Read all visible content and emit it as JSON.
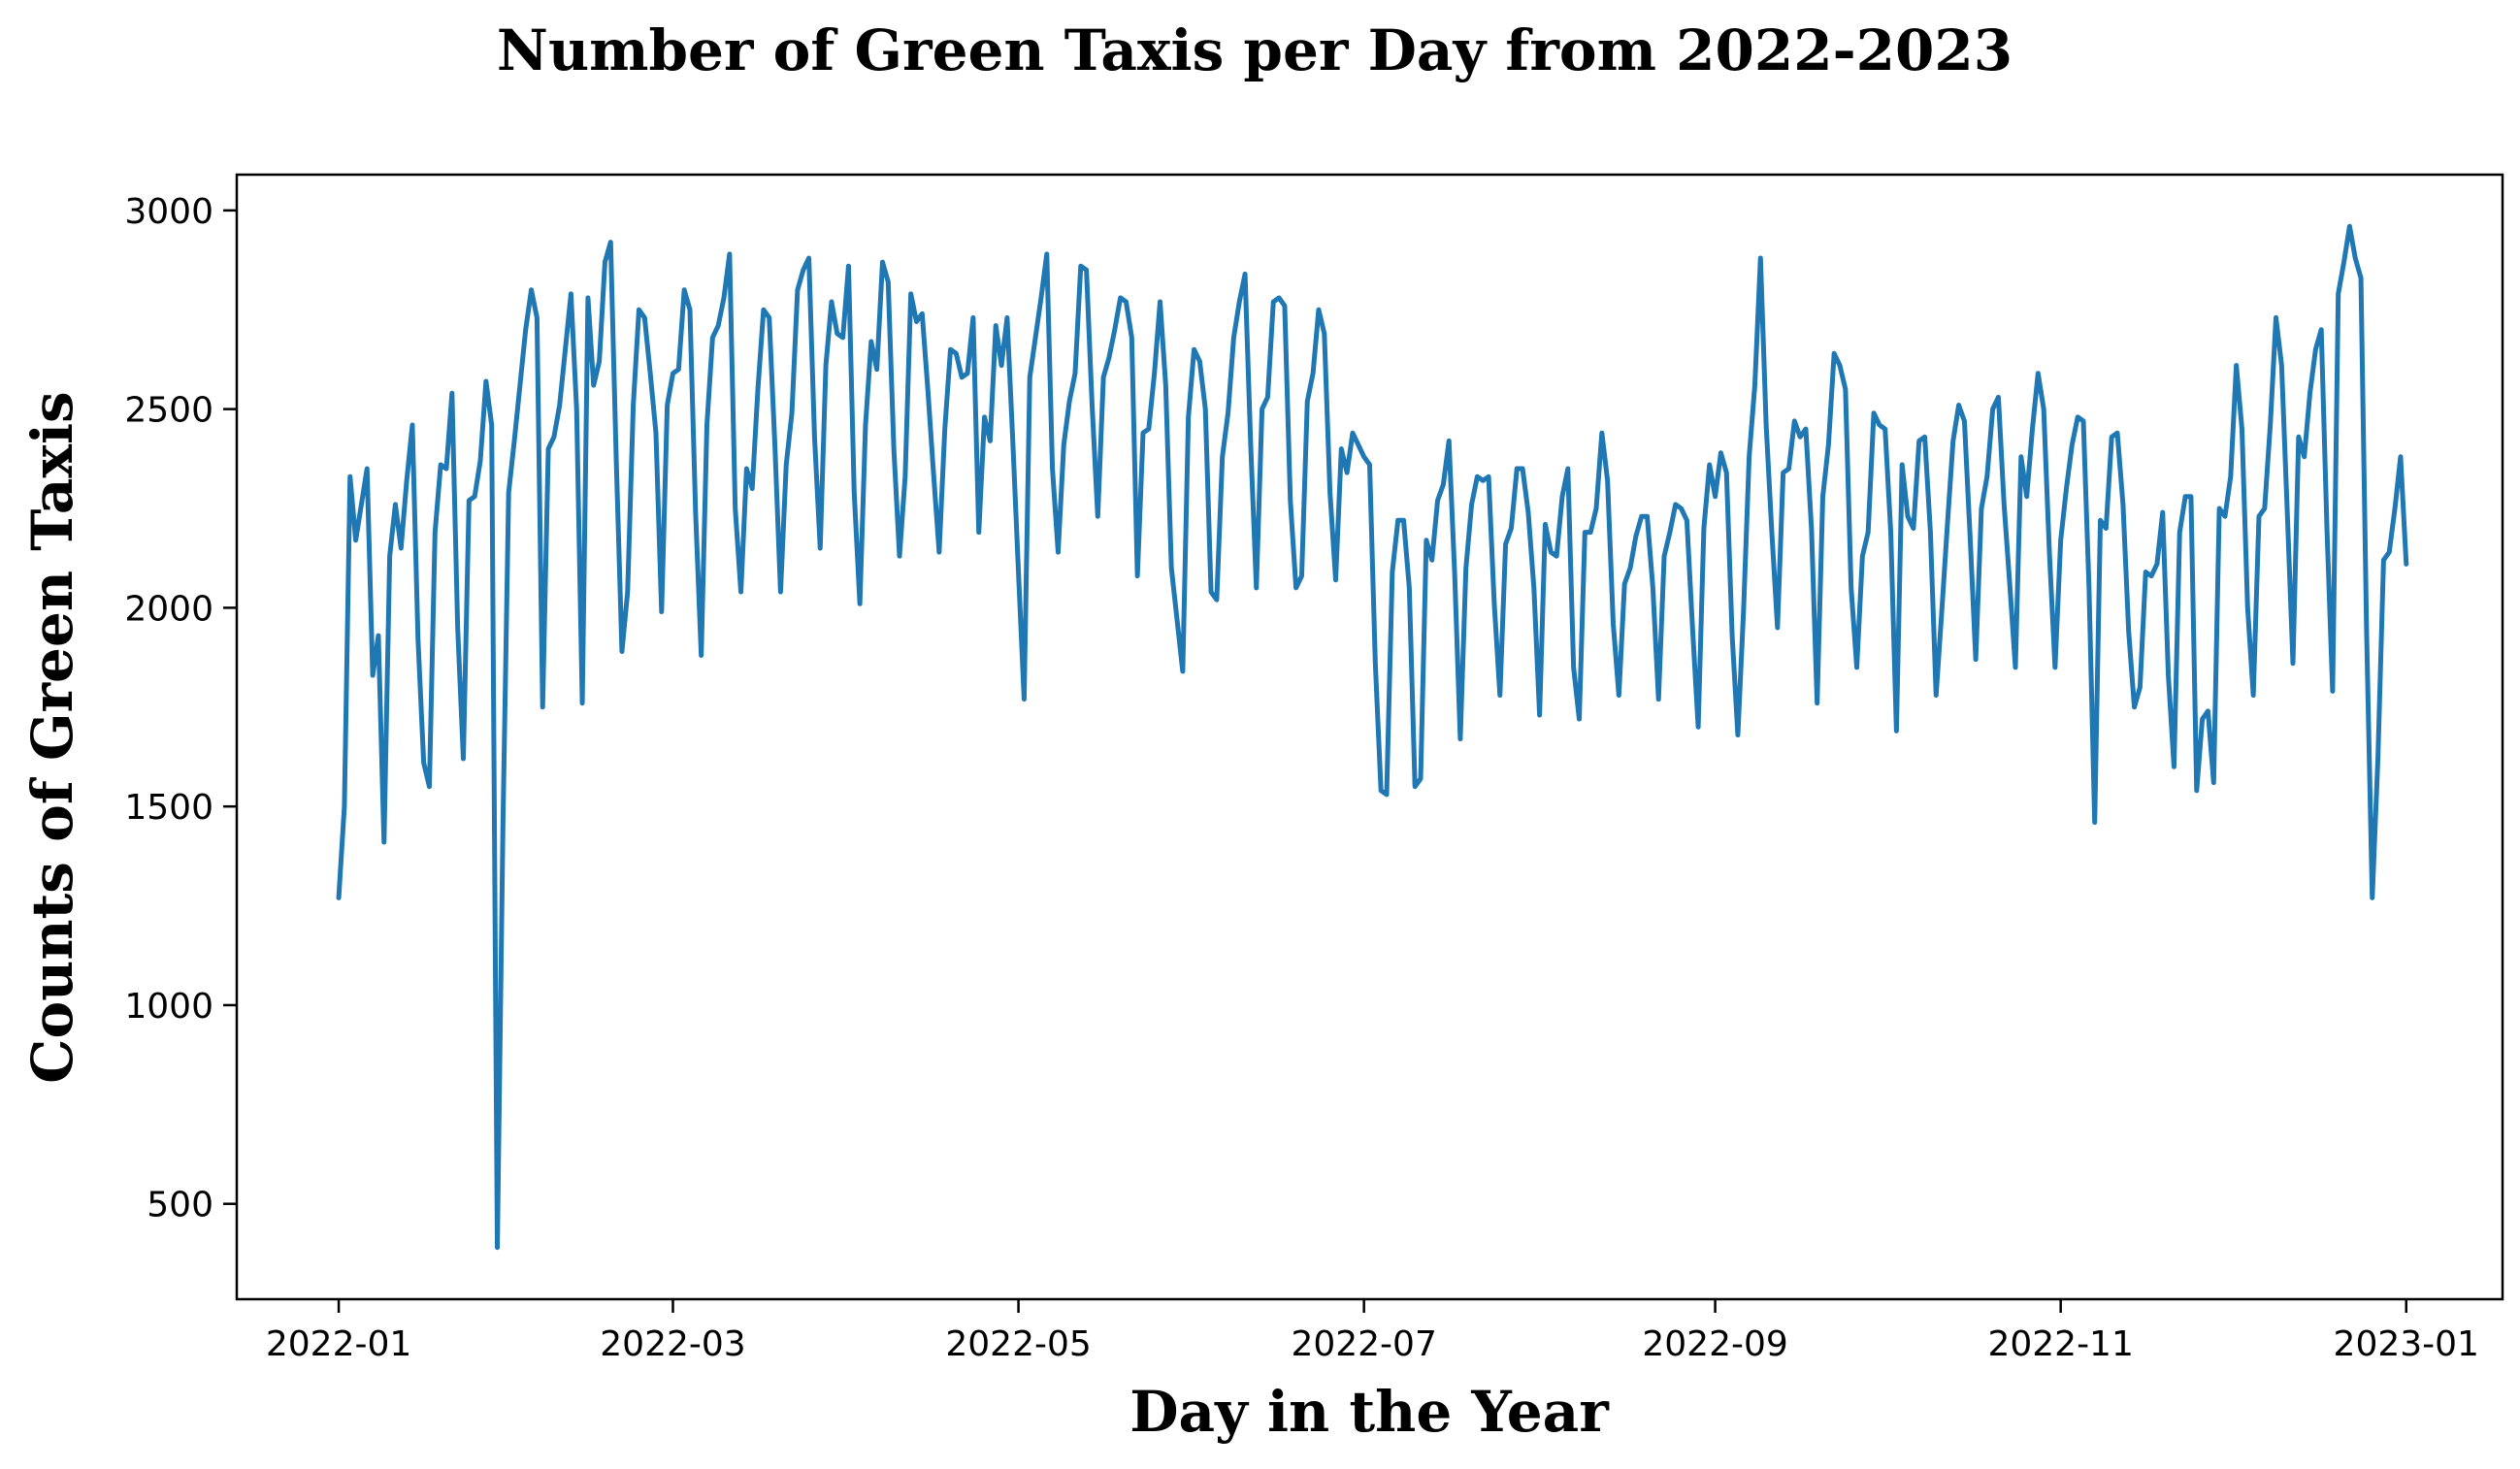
{
  "chart_data": {
    "type": "line",
    "title": "Number of Green Taxis per Day from 2022-2023",
    "xlabel": "Day in the Year",
    "ylabel": "Counts of Green Taxis",
    "x_start": "2022-01-01",
    "x_end": "2022-12-31",
    "xlim": [
      "2021-12-14",
      "2023-01-18"
    ],
    "ylim": [
      260,
      3090
    ],
    "grid": false,
    "line_color": "#1f77b4",
    "x_ticks": [
      {
        "date": "2022-01-01",
        "label": "2022-01"
      },
      {
        "date": "2022-03-01",
        "label": "2022-03"
      },
      {
        "date": "2022-05-01",
        "label": "2022-05"
      },
      {
        "date": "2022-07-01",
        "label": "2022-07"
      },
      {
        "date": "2022-09-01",
        "label": "2022-09"
      },
      {
        "date": "2022-11-01",
        "label": "2022-11"
      },
      {
        "date": "2023-01-01",
        "label": "2023-01"
      }
    ],
    "y_ticks": [
      {
        "value": 500,
        "label": "500"
      },
      {
        "value": 1000,
        "label": "1000"
      },
      {
        "value": 1500,
        "label": "1500"
      },
      {
        "value": 2000,
        "label": "2000"
      },
      {
        "value": 2500,
        "label": "2500"
      },
      {
        "value": 3000,
        "label": "3000"
      }
    ],
    "series": [
      {
        "values": [
          1270,
          1500,
          2330,
          2170,
          2260,
          2350,
          1830,
          1930,
          1410,
          2130,
          2260,
          2150,
          2320,
          2460,
          1920,
          1610,
          1550,
          2190,
          2360,
          2350,
          2540,
          1950,
          1620,
          2270,
          2280,
          2370,
          2570,
          2460,
          390,
          1460,
          2290,
          2420,
          2560,
          2700,
          2800,
          2730,
          1750,
          2400,
          2430,
          2510,
          2650,
          2790,
          2500,
          1760,
          2780,
          2560,
          2620,
          2870,
          2920,
          2370,
          1890,
          2040,
          2510,
          2750,
          2730,
          2590,
          2440,
          1990,
          2510,
          2590,
          2600,
          2800,
          2750,
          2240,
          1880,
          2460,
          2680,
          2710,
          2780,
          2890,
          2250,
          2040,
          2350,
          2300,
          2550,
          2750,
          2730,
          2410,
          2040,
          2360,
          2490,
          2800,
          2850,
          2880,
          2430,
          2150,
          2610,
          2770,
          2690,
          2680,
          2860,
          2290,
          2010,
          2460,
          2670,
          2600,
          2870,
          2820,
          2400,
          2130,
          2330,
          2790,
          2720,
          2740,
          2550,
          2340,
          2140,
          2450,
          2650,
          2640,
          2580,
          2590,
          2730,
          2190,
          2480,
          2420,
          2710,
          2610,
          2730,
          2420,
          2090,
          1770,
          2580,
          2680,
          2780,
          2890,
          2350,
          2140,
          2410,
          2520,
          2590,
          2860,
          2850,
          2510,
          2230,
          2580,
          2630,
          2700,
          2780,
          2770,
          2680,
          2080,
          2440,
          2450,
          2590,
          2770,
          2560,
          2100,
          1970,
          1840,
          2480,
          2650,
          2620,
          2500,
          2040,
          2020,
          2380,
          2490,
          2680,
          2770,
          2840,
          2410,
          2050,
          2500,
          2530,
          2770,
          2780,
          2760,
          2270,
          2050,
          2080,
          2520,
          2590,
          2750,
          2690,
          2290,
          2070,
          2400,
          2340,
          2440,
          2410,
          2380,
          2360,
          1860,
          1540,
          1530,
          2090,
          2220,
          2220,
          2050,
          1550,
          1570,
          2170,
          2120,
          2270,
          2310,
          2420,
          2090,
          1670,
          2100,
          2260,
          2330,
          2320,
          2330,
          2010,
          1780,
          2160,
          2200,
          2350,
          2350,
          2240,
          2050,
          1730,
          2210,
          2140,
          2130,
          2280,
          2350,
          1850,
          1720,
          2190,
          2190,
          2250,
          2440,
          2320,
          1960,
          1780,
          2060,
          2100,
          2180,
          2230,
          2230,
          2050,
          1770,
          2130,
          2190,
          2260,
          2250,
          2220,
          1950,
          1700,
          2200,
          2360,
          2280,
          2390,
          2340,
          1930,
          1680,
          1990,
          2380,
          2560,
          2880,
          2460,
          2190,
          1950,
          2340,
          2350,
          2470,
          2430,
          2450,
          2200,
          1760,
          2280,
          2410,
          2640,
          2610,
          2550,
          2050,
          1850,
          2130,
          2190,
          2490,
          2460,
          2450,
          2190,
          1690,
          2360,
          2230,
          2200,
          2420,
          2430,
          2190,
          1780,
          1990,
          2210,
          2420,
          2510,
          2470,
          2180,
          1870,
          2250,
          2330,
          2500,
          2530,
          2260,
          2060,
          1850,
          2380,
          2280,
          2450,
          2590,
          2500,
          2140,
          1850,
          2170,
          2300,
          2410,
          2480,
          2470,
          2050,
          1460,
          2220,
          2200,
          2430,
          2440,
          2260,
          1940,
          1750,
          1800,
          2090,
          2080,
          2110,
          2240,
          1830,
          1600,
          2190,
          2280,
          2280,
          1540,
          1720,
          1740,
          1560,
          2250,
          2230,
          2330,
          2610,
          2450,
          2000,
          1780,
          2230,
          2250,
          2460,
          2730,
          2610,
          2240,
          1860,
          2430,
          2380,
          2540,
          2650,
          2700,
          2200,
          1790,
          2790,
          2870,
          2960,
          2880,
          2830,
          1940,
          1270,
          1620,
          2120,
          2140,
          2250,
          2380,
          2110
        ]
      }
    ]
  }
}
